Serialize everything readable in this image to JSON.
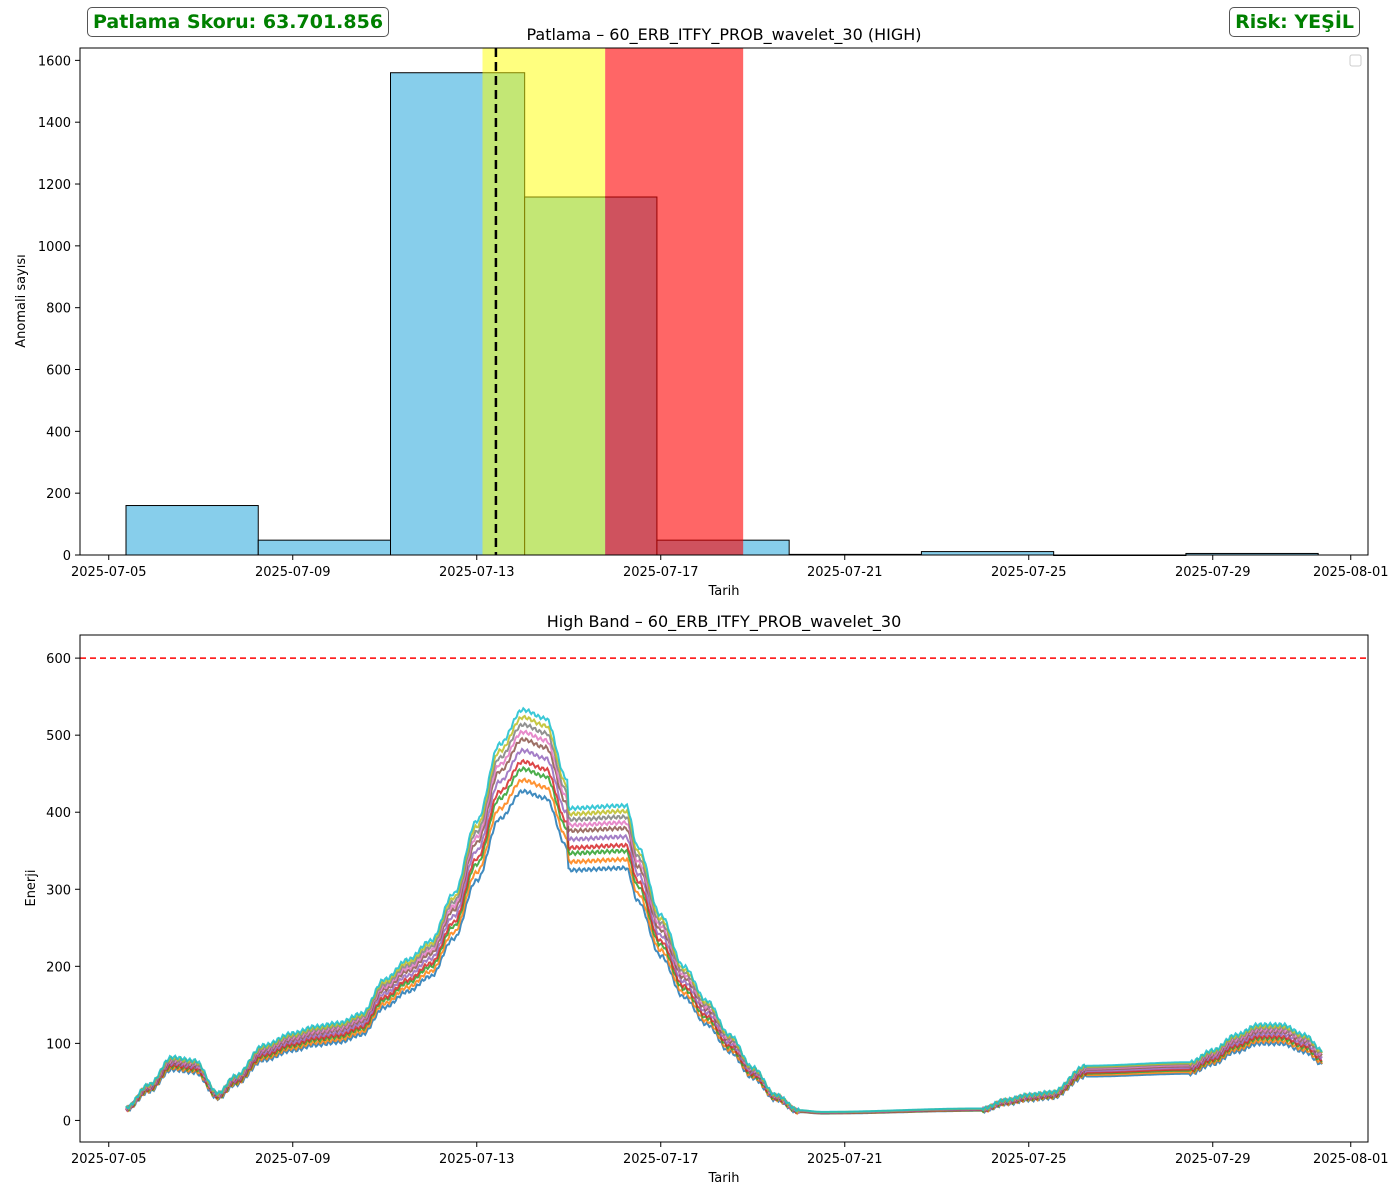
{
  "header": {
    "score_text": "Patlama Skoru: 63.701.856",
    "risk_text": "Risk: YEŞİL",
    "badge_color": "#008000"
  },
  "chart_data": [
    {
      "type": "bar",
      "title": "Patlama – 60_ERB_ITFY_PROB_wavelet_30 (HIGH)",
      "xlabel": "Tarih",
      "ylabel": "Anomali sayısı",
      "x_range": [
        "2025-07-04T09:00",
        "2025-08-01T09:00"
      ],
      "ylim": [
        0,
        1640
      ],
      "xticks": [
        "2025-07-05",
        "2025-07-09",
        "2025-07-13",
        "2025-07-17",
        "2025-07-21",
        "2025-07-25",
        "2025-07-29",
        "2025-08-01"
      ],
      "yticks": [
        0,
        200,
        400,
        600,
        800,
        1000,
        1200,
        1400,
        1600
      ],
      "bar_color": "#87ceeb",
      "bins": [
        {
          "start": "2025-07-05T09:00",
          "end": "2025-07-08T06:00",
          "value": 160
        },
        {
          "start": "2025-07-08T06:00",
          "end": "2025-07-11T03:00",
          "value": 48
        },
        {
          "start": "2025-07-11T03:00",
          "end": "2025-07-14T01:00",
          "value": 1560
        },
        {
          "start": "2025-07-14T01:00",
          "end": "2025-07-16T22:00",
          "value": 1158
        },
        {
          "start": "2025-07-16T22:00",
          "end": "2025-07-19T19:00",
          "value": 48
        },
        {
          "start": "2025-07-19T19:00",
          "end": "2025-07-22T16:00",
          "value": 2
        },
        {
          "start": "2025-07-22T16:00",
          "end": "2025-07-25T13:00",
          "value": 11
        },
        {
          "start": "2025-07-25T13:00",
          "end": "2025-07-28T10:00",
          "value": 0
        },
        {
          "start": "2025-07-28T10:00",
          "end": "2025-07-31T07:00",
          "value": 5
        }
      ],
      "spans": [
        {
          "start": "2025-07-13T03:00",
          "end": "2025-07-15T19:00",
          "color": "#ffff00",
          "alpha": 0.5
        },
        {
          "start": "2025-07-15T19:00",
          "end": "2025-07-18T19:00",
          "color": "#ff0000",
          "alpha": 0.6
        }
      ],
      "vline": {
        "x": "2025-07-13T10:00",
        "color": "#000000",
        "style": "dashed"
      },
      "legend": "top-right (empty)"
    },
    {
      "type": "line",
      "title": "High Band – 60_ERB_ITFY_PROB_wavelet_30",
      "xlabel": "Tarih",
      "ylabel": "Enerji",
      "x_range": [
        "2025-07-04T09:00",
        "2025-08-01T09:00"
      ],
      "ylim": [
        -28,
        630
      ],
      "xticks": [
        "2025-07-05",
        "2025-07-09",
        "2025-07-13",
        "2025-07-17",
        "2025-07-21",
        "2025-07-25",
        "2025-07-29",
        "2025-08-01"
      ],
      "yticks": [
        0,
        100,
        200,
        300,
        400,
        500,
        600
      ],
      "hline": {
        "y": 600,
        "color": "#ff0000",
        "style": "dashed"
      },
      "series_count": 10,
      "series_colors": [
        "#1f77b4",
        "#ff7f0e",
        "#2ca02c",
        "#d62728",
        "#9467bd",
        "#8c564b",
        "#e377c2",
        "#7f7f7f",
        "#bcbd22",
        "#17becf"
      ],
      "base_curve": [
        [
          "2025-07-05T09:00",
          15
        ],
        [
          "2025-07-05T21:00",
          42
        ],
        [
          "2025-07-06T09:00",
          74
        ],
        [
          "2025-07-06T21:00",
          70
        ],
        [
          "2025-07-07T09:00",
          32
        ],
        [
          "2025-07-07T18:00",
          52
        ],
        [
          "2025-07-08T09:00",
          88
        ],
        [
          "2025-07-09T00:00",
          102
        ],
        [
          "2025-07-09T12:00",
          110
        ],
        [
          "2025-07-10T00:00",
          114
        ],
        [
          "2025-07-10T12:00",
          125
        ],
        [
          "2025-07-11T00:00",
          165
        ],
        [
          "2025-07-11T12:00",
          188
        ],
        [
          "2025-07-12T00:00",
          210
        ],
        [
          "2025-07-12T12:00",
          265
        ],
        [
          "2025-07-13T00:00",
          350
        ],
        [
          "2025-07-13T12:00",
          440
        ],
        [
          "2025-07-14T00:00",
          480
        ],
        [
          "2025-07-14T12:00",
          470
        ],
        [
          "2025-07-14T23:00",
          400
        ],
        [
          "2025-07-15T00:00",
          365
        ],
        [
          "2025-07-16T06:00",
          368
        ],
        [
          "2025-07-16T12:00",
          320
        ],
        [
          "2025-07-17T00:00",
          240
        ],
        [
          "2025-07-17T12:00",
          180
        ],
        [
          "2025-07-18T00:00",
          140
        ],
        [
          "2025-07-18T12:00",
          100
        ],
        [
          "2025-07-19T00:00",
          62
        ],
        [
          "2025-07-19T12:00",
          30
        ],
        [
          "2025-07-20T00:00",
          12
        ],
        [
          "2025-07-20T12:00",
          10
        ],
        [
          "2025-07-24T00:00",
          14
        ],
        [
          "2025-07-24T12:00",
          24
        ],
        [
          "2025-07-25T00:00",
          30
        ],
        [
          "2025-07-25T12:00",
          33
        ],
        [
          "2025-07-26T06:00",
          64
        ],
        [
          "2025-07-28T12:00",
          68
        ],
        [
          "2025-07-29T00:00",
          82
        ],
        [
          "2025-07-29T12:00",
          100
        ],
        [
          "2025-07-30T00:00",
          112
        ],
        [
          "2025-07-30T12:00",
          112
        ],
        [
          "2025-07-31T00:00",
          100
        ],
        [
          "2025-07-31T09:00",
          82
        ]
      ],
      "series_scales": [
        0.89,
        0.92,
        0.95,
        0.97,
        1.0,
        1.03,
        1.05,
        1.07,
        1.09,
        1.11
      ]
    }
  ]
}
